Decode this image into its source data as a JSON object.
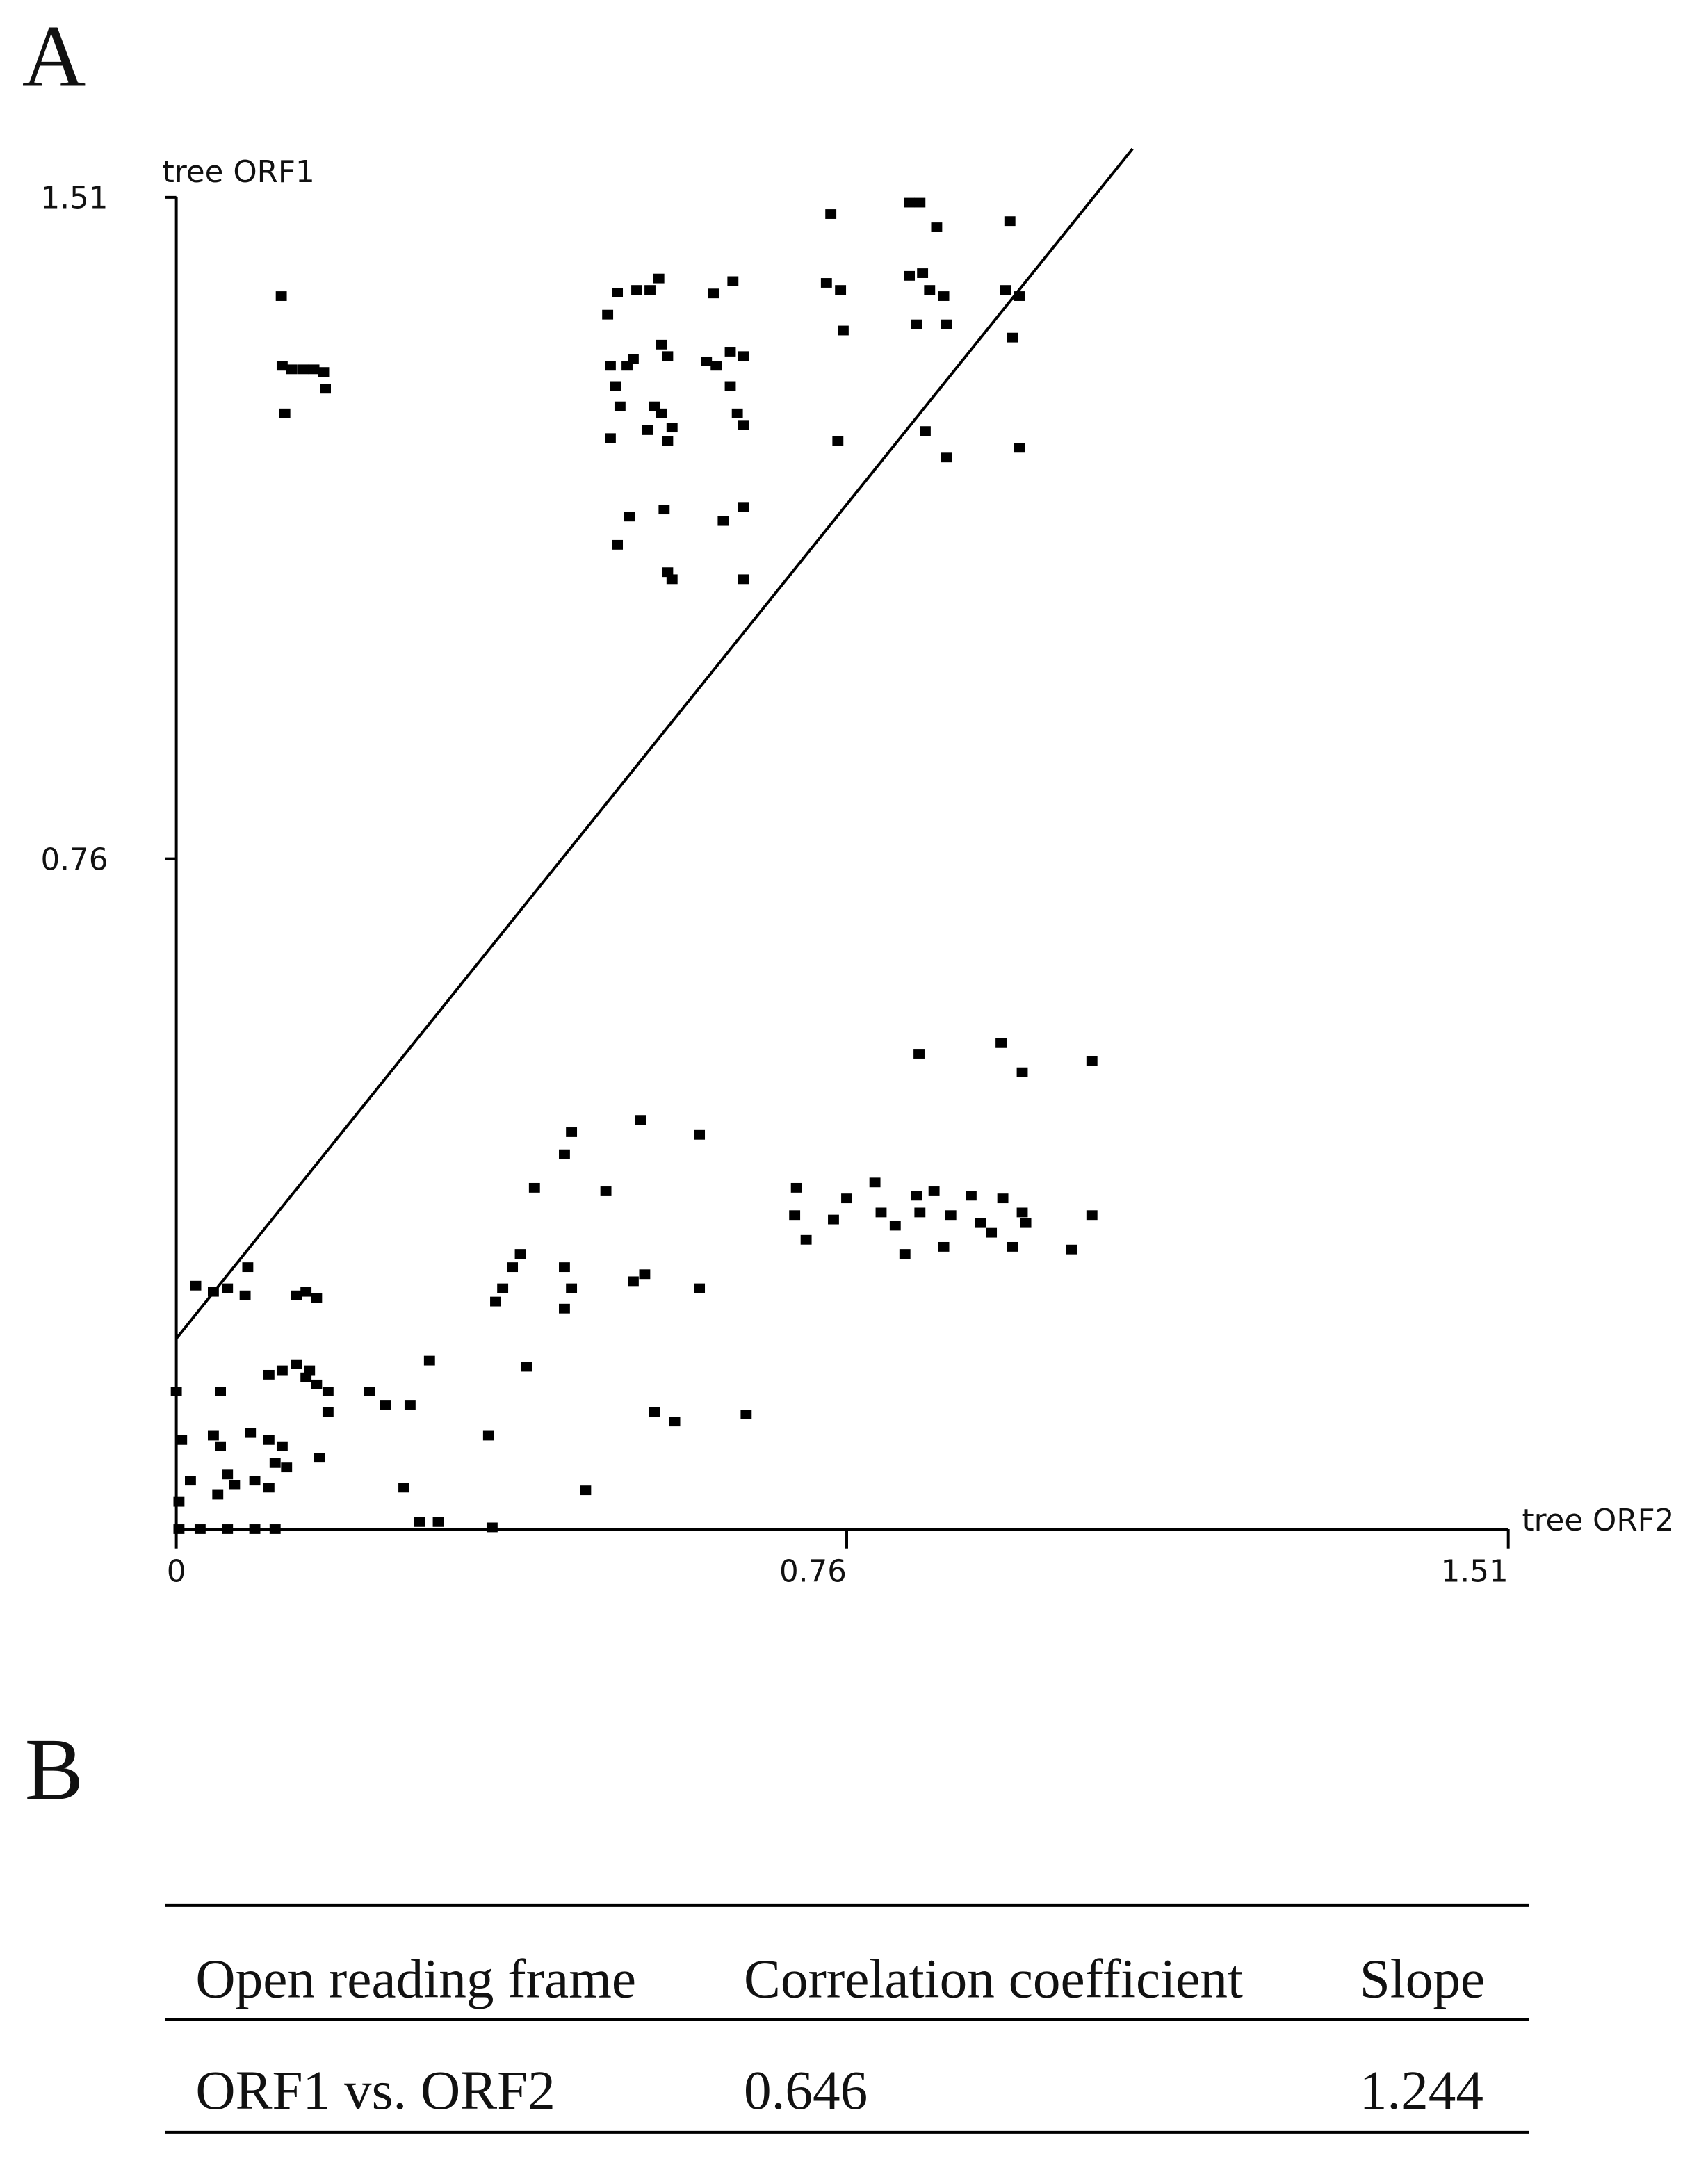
{
  "panels": [
    "A",
    "B"
  ],
  "chart_data": {
    "type": "scatter",
    "x_label": "tree ORF2",
    "y_label": "tree ORF1",
    "xlim": [
      0,
      1.51
    ],
    "ylim": [
      0,
      1.51
    ],
    "xticks": [
      0,
      0.76,
      1.51
    ],
    "yticks": [
      0.76,
      1.51
    ],
    "color": "#000000",
    "fit_line": {
      "x": [
        0,
        1.084
      ],
      "y": [
        0.216,
        1.565
      ]
    },
    "x": [
      0.119,
      0.12,
      0.131,
      0.144,
      0.156,
      0.167,
      0.169,
      0.123,
      0.489,
      0.492,
      0.498,
      0.503,
      0.511,
      0.518,
      0.5,
      0.522,
      0.547,
      0.537,
      0.55,
      0.557,
      0.542,
      0.55,
      0.562,
      0.557,
      0.492,
      0.534,
      0.514,
      0.5,
      0.553,
      0.557,
      0.562,
      0.609,
      0.631,
      0.601,
      0.612,
      0.628,
      0.643,
      0.636,
      0.643,
      0.62,
      0.643,
      0.643,
      0.628,
      0.742,
      0.737,
      0.753,
      0.756,
      0.75,
      0.831,
      0.843,
      0.862,
      0.831,
      0.846,
      0.854,
      0.87,
      0.839,
      0.873,
      0.945,
      0.94,
      0.956,
      0.948,
      0.956,
      0.849,
      0.873,
      0.842,
      0.935,
      0.959,
      1.038,
      0.703,
      0.701,
      0.714,
      0.745,
      0.76,
      0.792,
      0.799,
      0.815,
      0.826,
      0.839,
      0.843,
      0.859,
      0.87,
      0.878,
      0.901,
      0.912,
      0.924,
      0.937,
      0.948,
      0.959,
      0.963,
      1.015,
      1.038,
      0.44,
      0.448,
      0.526,
      0.593,
      0.406,
      0.487,
      0.362,
      0.37,
      0.381,
      0.39,
      0.44,
      0.448,
      0.44,
      0.518,
      0.531,
      0.593,
      0.397,
      0.542,
      0.565,
      0.646,
      0.354,
      0.464,
      0.358,
      0.022,
      0.042,
      0.058,
      0.081,
      0.078,
      0.136,
      0.147,
      0.159,
      0.0,
      0.006,
      0.016,
      0.003,
      0.042,
      0.05,
      0.058,
      0.047,
      0.066,
      0.089,
      0.105,
      0.084,
      0.105,
      0.12,
      0.112,
      0.125,
      0.105,
      0.12,
      0.136,
      0.147,
      0.159,
      0.172,
      0.151,
      0.172,
      0.162,
      0.05,
      0.219,
      0.237,
      0.265,
      0.287,
      0.258,
      0.276,
      0.297,
      0.027,
      0.058,
      0.089,
      0.112,
      0.003
    ],
    "values": [
      1.398,
      1.319,
      1.315,
      1.315,
      1.315,
      1.312,
      1.293,
      1.265,
      1.377,
      1.319,
      1.296,
      1.273,
      1.319,
      1.327,
      1.402,
      1.405,
      1.418,
      1.405,
      1.343,
      1.33,
      1.273,
      1.265,
      1.249,
      1.234,
      1.237,
      1.246,
      1.148,
      1.116,
      1.156,
      1.085,
      1.077,
      1.401,
      1.415,
      1.324,
      1.319,
      1.335,
      1.33,
      1.265,
      1.252,
      1.143,
      1.159,
      1.077,
      1.296,
      1.491,
      1.413,
      1.405,
      1.359,
      1.234,
      1.504,
      1.504,
      1.476,
      1.421,
      1.424,
      1.405,
      1.398,
      1.366,
      1.366,
      1.483,
      1.405,
      1.398,
      1.351,
      1.226,
      1.245,
      1.215,
      0.539,
      0.551,
      0.518,
      0.531,
      0.387,
      0.356,
      0.328,
      0.351,
      0.375,
      0.393,
      0.359,
      0.344,
      0.312,
      0.378,
      0.359,
      0.383,
      0.32,
      0.356,
      0.378,
      0.347,
      0.336,
      0.375,
      0.32,
      0.359,
      0.347,
      0.317,
      0.356,
      0.425,
      0.45,
      0.464,
      0.447,
      0.387,
      0.383,
      0.258,
      0.273,
      0.297,
      0.312,
      0.297,
      0.273,
      0.25,
      0.281,
      0.289,
      0.273,
      0.184,
      0.133,
      0.122,
      0.13,
      0.106,
      0.044,
      0.002,
      0.276,
      0.269,
      0.273,
      0.297,
      0.265,
      0.265,
      0.269,
      0.262,
      0.156,
      0.101,
      0.055,
      0.031,
      0.106,
      0.094,
      0.062,
      0.039,
      0.05,
      0.055,
      0.047,
      0.109,
      0.101,
      0.094,
      0.075,
      0.07,
      0.175,
      0.18,
      0.187,
      0.172,
      0.164,
      0.156,
      0.18,
      0.133,
      0.081,
      0.156,
      0.156,
      0.141,
      0.141,
      0.191,
      0.047,
      0.008,
      0.008,
      0.0,
      0.0,
      0.0,
      0.0,
      0.0
    ]
  },
  "table": {
    "header": [
      "Open reading frame",
      "Correlation coefficient",
      "Slope"
    ],
    "rows": [
      [
        "ORF1 vs. ORF2",
        "0.646",
        "1.244"
      ]
    ]
  }
}
